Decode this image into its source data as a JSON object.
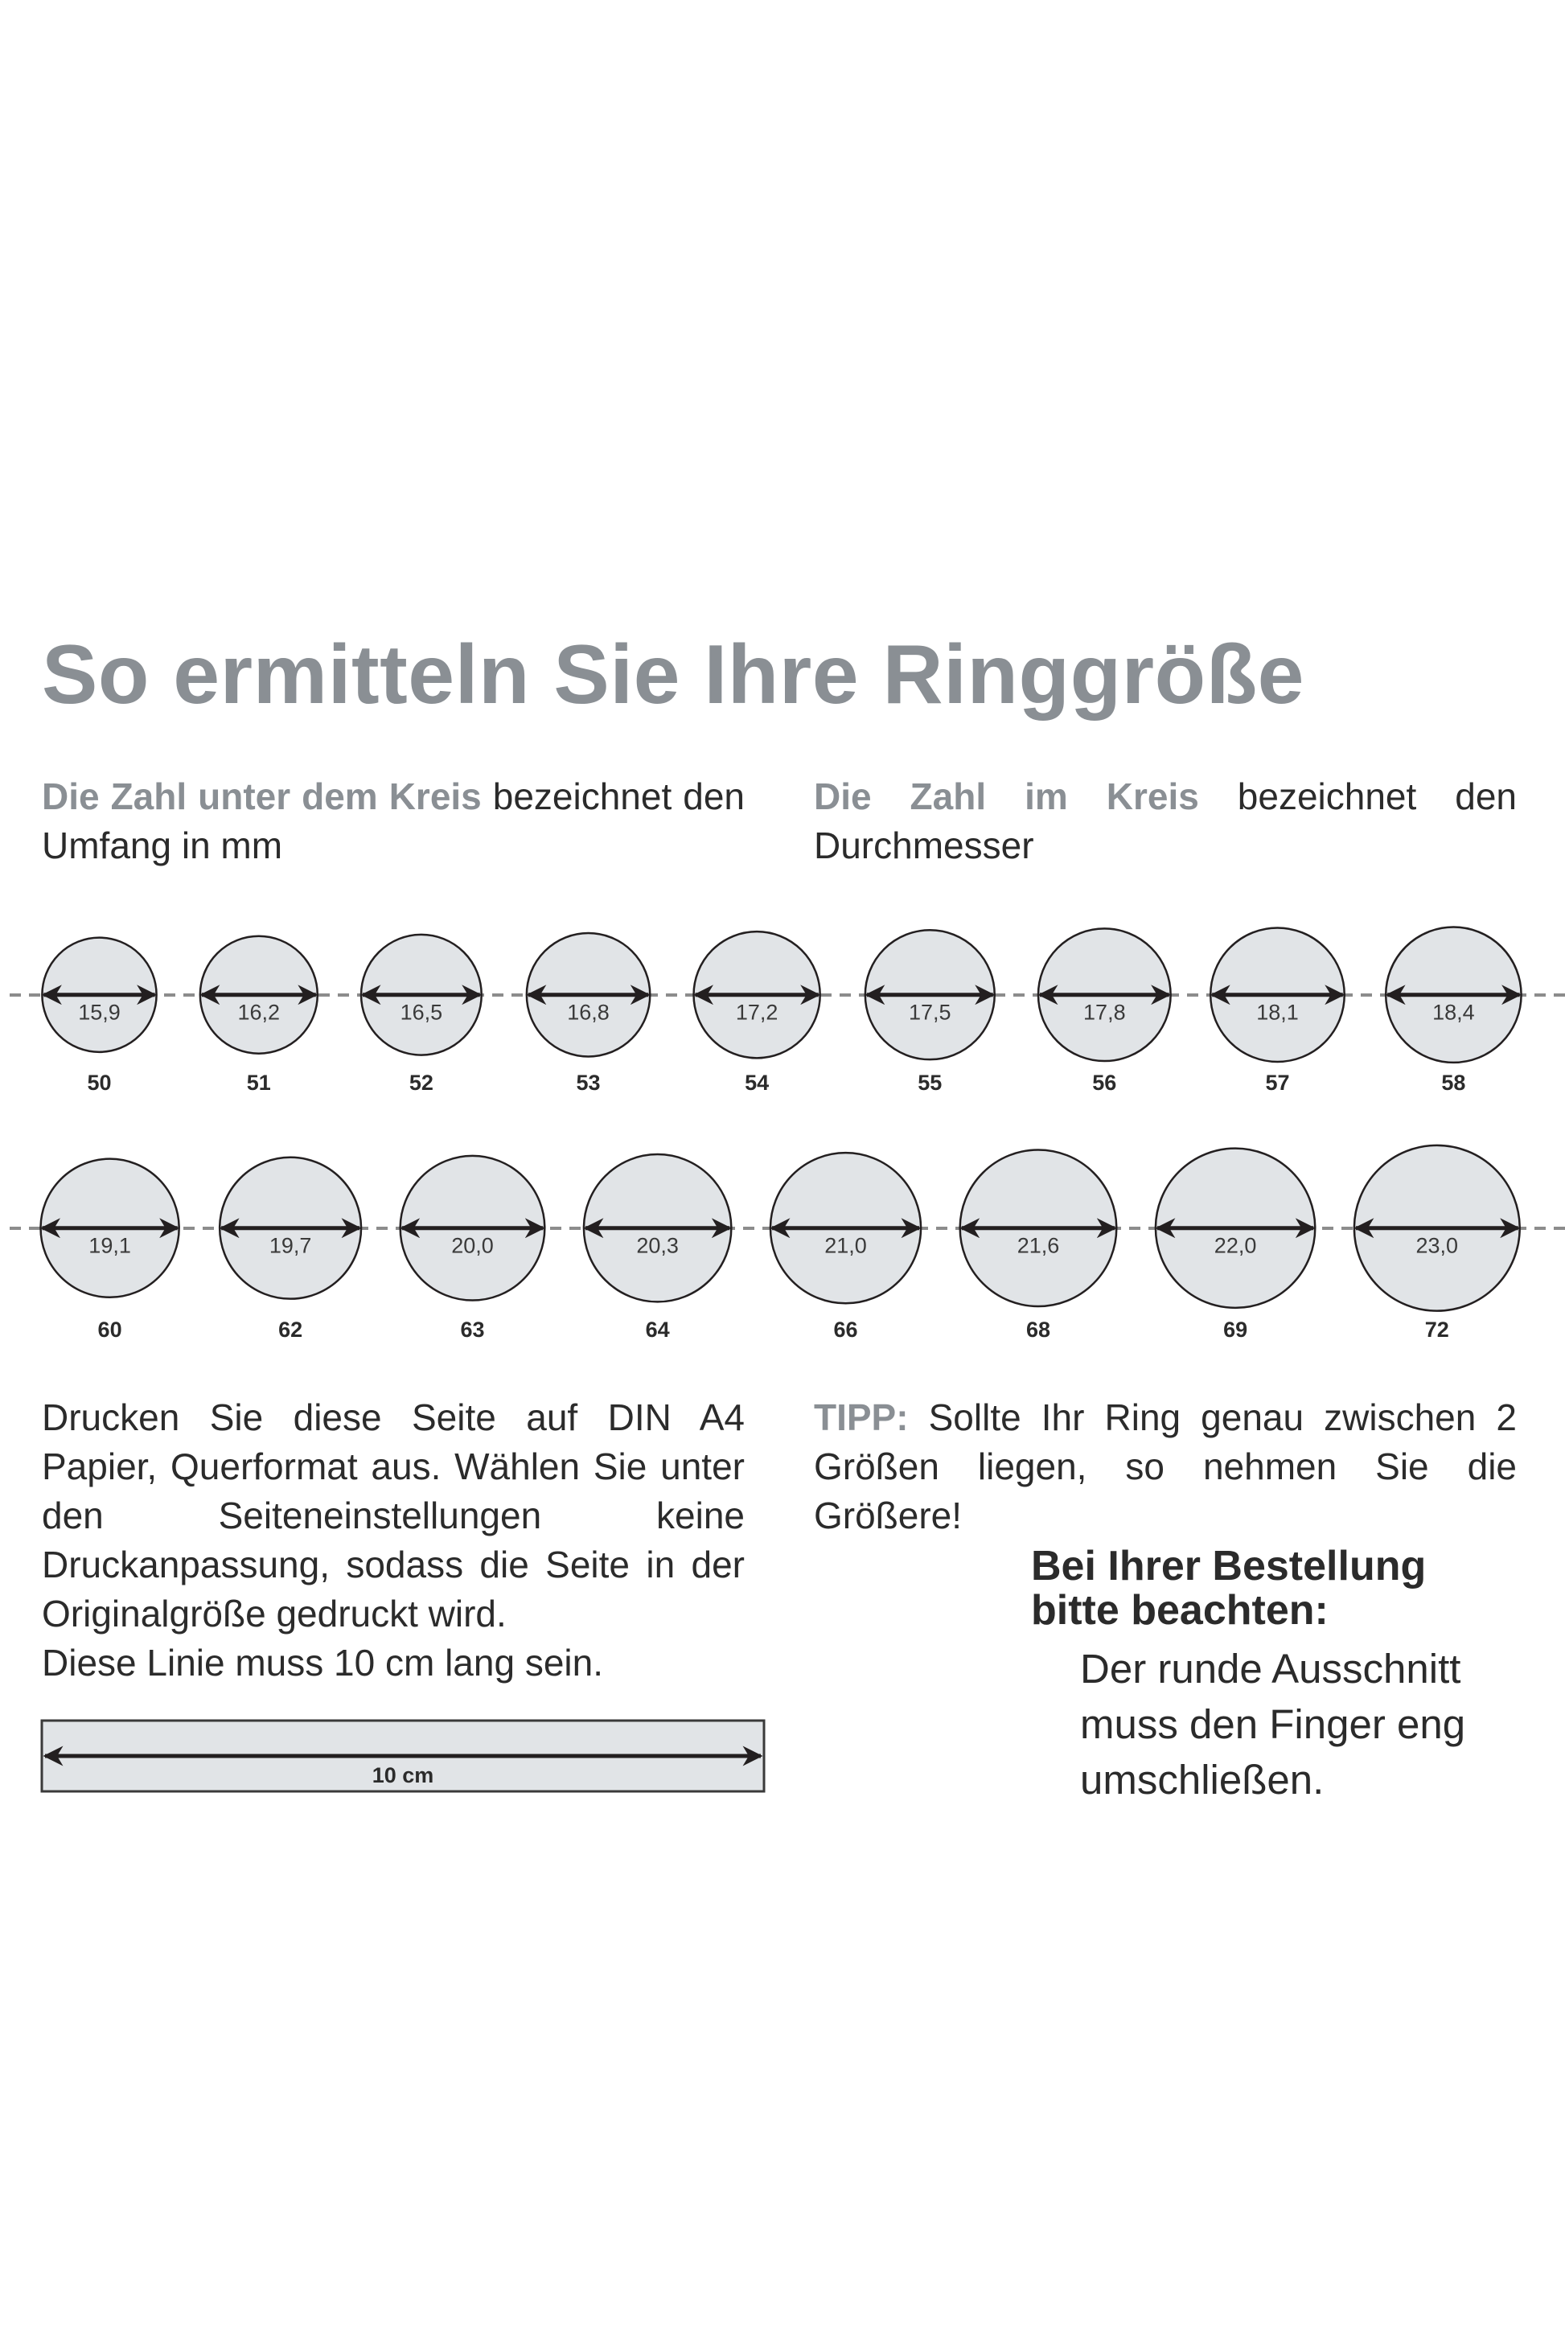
{
  "title": "So ermitteln Sie Ihre Ringgröße",
  "intro_left": {
    "highlight": "Die Zahl unter dem Kreis",
    "rest": " bezeichnet den Umfang in mm"
  },
  "intro_right": {
    "highlight": "Die Zahl im Kreis",
    "rest": " bezeichnet den Durchmesser"
  },
  "rings": [
    {
      "diameter": "15,9",
      "size": "50"
    },
    {
      "diameter": "16,2",
      "size": "51"
    },
    {
      "diameter": "16,5",
      "size": "52"
    },
    {
      "diameter": "16,8",
      "size": "53"
    },
    {
      "diameter": "17,2",
      "size": "54"
    },
    {
      "diameter": "17,5",
      "size": "55"
    },
    {
      "diameter": "17,8",
      "size": "56"
    },
    {
      "diameter": "18,1",
      "size": "57"
    },
    {
      "diameter": "18,4",
      "size": "58"
    },
    {
      "diameter": "19,1",
      "size": "60"
    },
    {
      "diameter": "19,7",
      "size": "62"
    },
    {
      "diameter": "20,0",
      "size": "63"
    },
    {
      "diameter": "20,3",
      "size": "64"
    },
    {
      "diameter": "21,0",
      "size": "66"
    },
    {
      "diameter": "21,6",
      "size": "68"
    },
    {
      "diameter": "22,0",
      "size": "69"
    },
    {
      "diameter": "23,0",
      "size": "72"
    }
  ],
  "print_instructions": "Drucken Sie diese Seite auf DIN A4 Papier, Querformat aus. Wählen Sie unter den Seiteneinstellungen keine Druckanpassung, sodass die Seite in der Originalgröße gedruckt wird.",
  "line_note": "Diese Linie muss 10 cm lang sein.",
  "ruler_label": "10 cm",
  "tip": {
    "label": "TIPP:",
    "text": " Sollte Ihr Ring genau zwischen 2 Größen liegen, so nehmen Sie die Größere!"
  },
  "order_note": {
    "heading_1": "Bei Ihrer Bestellung",
    "heading_2": "bitte beachten:",
    "lines": [
      "Der runde Ausschnitt",
      "muss den Finger eng",
      "umschließen."
    ]
  },
  "colors": {
    "heading_gray": "#8a8f94",
    "circle_fill": "#e1e4e7",
    "stroke": "#231f20",
    "dash": "#8c8c8c"
  }
}
